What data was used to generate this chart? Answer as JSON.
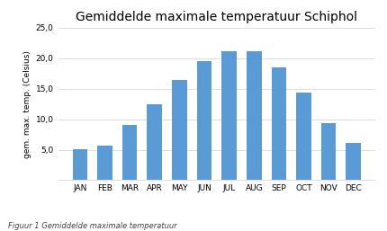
{
  "title": "Gemiddelde maximale temperatuur Schiphol",
  "ylabel": "gem. max. temp. (Celsius)",
  "caption": "Figuur 1 Gemiddelde maximale temperatuur",
  "categories": [
    "JAN",
    "FEB",
    "MAR",
    "APR",
    "MAY",
    "JUN",
    "JUL",
    "AUG",
    "SEP",
    "OCT",
    "NOV",
    "DEC"
  ],
  "values": [
    5.1,
    5.6,
    9.0,
    12.5,
    16.5,
    19.5,
    21.1,
    21.1,
    18.5,
    14.4,
    9.3,
    6.1
  ],
  "bar_color": "#5B9BD5",
  "ylim": [
    0,
    25
  ],
  "yticks": [
    0,
    5.0,
    10.0,
    15.0,
    20.0,
    25.0
  ],
  "ytick_labels": [
    "",
    "5,0",
    "10,0",
    "15,0",
    "20,0",
    "25,0"
  ],
  "background_color": "#ffffff",
  "title_fontsize": 10,
  "ylabel_fontsize": 6.5,
  "caption_fontsize": 6,
  "tick_fontsize": 6.5
}
